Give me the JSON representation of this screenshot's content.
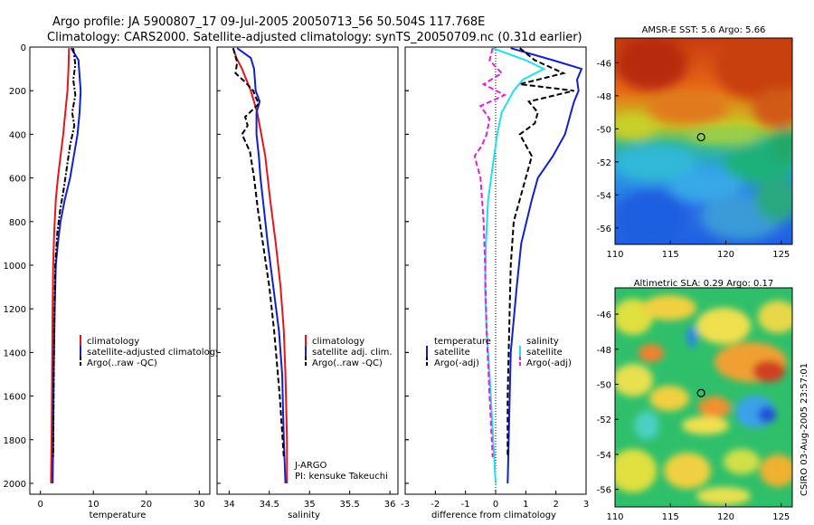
{
  "figure": {
    "title_line1": "Argo profile: JA 5900807_17 09-Jul-2005 20050713_56 50.504S 117.768E",
    "title_line2": "Climatology: CARS2000. Satellite-adjusted climatology: synTS_20050709.nc (0.31d earlier)",
    "timestamp": "CSIRO 03-Aug-2005 23:57:01",
    "colors": {
      "climatology": "#e8141b",
      "satellite": "#1020d0",
      "argo": "#000000",
      "salinity_diff": "#20e0e8",
      "argo_salinity_diff": "#e020e0"
    }
  },
  "chart_data": [
    {
      "id": "temperature",
      "type": "line",
      "xlabel": "temperature",
      "ylabel": "",
      "xlim": [
        -2,
        32
      ],
      "ylim": [
        2050,
        0
      ],
      "xticks": [
        "0",
        "10",
        "20",
        "30"
      ],
      "xtick_values": [
        0,
        10,
        20,
        30
      ],
      "yticks": [
        "0",
        "200",
        "400",
        "600",
        "800",
        "1000",
        "1200",
        "1400",
        "1600",
        "1800",
        "2000"
      ],
      "ytick_values": [
        0,
        200,
        400,
        600,
        800,
        1000,
        1200,
        1400,
        1600,
        1800,
        2000
      ],
      "legend": [
        "climatology",
        "satellite-adjusted climatology",
        "Argo(..raw -QC)"
      ],
      "series": [
        {
          "name": "climatology",
          "style": "solid",
          "color": "#e8141b",
          "x": [
            5.4,
            5.3,
            5.1,
            4.7,
            4.3,
            3.8,
            3.3,
            2.9,
            2.6,
            2.4,
            2.3,
            2.2,
            2.1,
            2.0
          ],
          "y": [
            5,
            100,
            200,
            300,
            400,
            500,
            600,
            700,
            850,
            1000,
            1200,
            1500,
            1800,
            2000
          ]
        },
        {
          "name": "satellite-adjusted climatology",
          "style": "solid",
          "color": "#1020d0",
          "x": [
            5.8,
            7.2,
            7.3,
            7.6,
            7.4,
            7.0,
            6.3,
            5.6,
            4.6,
            3.8,
            3.3,
            2.9,
            2.7,
            2.5,
            2.4,
            2.3
          ],
          "y": [
            5,
            60,
            100,
            200,
            300,
            400,
            500,
            600,
            700,
            800,
            900,
            1000,
            1200,
            1500,
            1800,
            2000
          ]
        },
        {
          "name": "Argo(..raw -QC)",
          "style": "dash-dot",
          "color": "#000000",
          "x": [
            6.2,
            6.6,
            6.2,
            6.6,
            6.0,
            6.4,
            5.6,
            5.0,
            4.4,
            3.7,
            3.2,
            2.8,
            2.6,
            2.5,
            2.4
          ],
          "y": [
            5,
            80,
            150,
            220,
            300,
            360,
            450,
            550,
            650,
            750,
            850,
            1000,
            1300,
            1600,
            1880
          ]
        }
      ]
    },
    {
      "id": "salinity",
      "type": "line",
      "xlabel": "salinity",
      "xlim": [
        33.85,
        36.1
      ],
      "ylim": [
        2050,
        0
      ],
      "xticks": [
        "34",
        "34.5",
        "35",
        "35.5",
        "36"
      ],
      "xtick_values": [
        34,
        34.5,
        35,
        35.5,
        36
      ],
      "legend": [
        "climatology",
        "satellite adj. clim.",
        "Argo(..raw -QC)"
      ],
      "annotations": [
        "J-ARGO",
        "PI: kensuke Takeuchi"
      ],
      "series": [
        {
          "name": "climatology",
          "style": "solid",
          "color": "#e8141b",
          "x": [
            34.05,
            34.09,
            34.16,
            34.27,
            34.35,
            34.4,
            34.45,
            34.51,
            34.58,
            34.64,
            34.68,
            34.7,
            34.72,
            34.72
          ],
          "y": [
            5,
            50,
            100,
            200,
            300,
            400,
            500,
            700,
            900,
            1100,
            1300,
            1500,
            1800,
            2000
          ]
        },
        {
          "name": "satellite adj. clim.",
          "style": "solid",
          "color": "#1020d0",
          "x": [
            34.1,
            34.27,
            34.31,
            34.33,
            34.38,
            34.34,
            34.34,
            34.37,
            34.39,
            34.42,
            34.48,
            34.55,
            34.62,
            34.66,
            34.68,
            34.7
          ],
          "y": [
            5,
            50,
            100,
            200,
            250,
            300,
            400,
            500,
            600,
            700,
            900,
            1100,
            1300,
            1500,
            1800,
            2000
          ]
        },
        {
          "name": "Argo(..raw -QC)",
          "style": "dashed",
          "color": "#000000",
          "x": [
            34.05,
            34.1,
            34.08,
            34.2,
            34.3,
            34.33,
            34.37,
            34.2,
            34.23,
            34.16,
            34.26,
            34.31,
            34.36,
            34.42,
            34.5,
            34.56,
            34.63,
            34.68
          ],
          "y": [
            5,
            70,
            120,
            160,
            200,
            230,
            260,
            320,
            360,
            400,
            480,
            600,
            750,
            900,
            1100,
            1300,
            1600,
            1880
          ]
        }
      ]
    },
    {
      "id": "difference",
      "type": "line",
      "xlabel": "difference from climatology",
      "xlim": [
        -3,
        3
      ],
      "ylim": [
        2050,
        0
      ],
      "xticks": [
        "-3",
        "-2",
        "-1",
        "0",
        "1",
        "2",
        "3"
      ],
      "xtick_values": [
        -3,
        -2,
        -1,
        0,
        1,
        2,
        3
      ],
      "legend_left_header": "temperature",
      "legend_left": [
        "satellite",
        "Argo(-adj)"
      ],
      "legend_right_header": "salinity",
      "legend_right": [
        "satellite",
        "Argo(-adj)"
      ],
      "series": [
        {
          "name": "temperature satellite",
          "style": "solid",
          "color": "#1020d0",
          "x": [
            0.5,
            1.9,
            2.85,
            2.7,
            2.75,
            2.6,
            2.5,
            2.3,
            1.9,
            1.4,
            1.2,
            0.85,
            0.7,
            0.5,
            0.45,
            0.4
          ],
          "y": [
            5,
            60,
            100,
            150,
            200,
            250,
            300,
            400,
            500,
            600,
            700,
            900,
            1100,
            1400,
            1700,
            2000
          ]
        },
        {
          "name": "temperature Argo(-adj)",
          "style": "dashed",
          "color": "#000000",
          "x": [
            0.8,
            1.3,
            2.25,
            0.8,
            2.6,
            1.1,
            1.4,
            1.3,
            0.8,
            1.2,
            1.0,
            0.6,
            0.5,
            0.45,
            0.4,
            0.4
          ],
          "y": [
            5,
            60,
            120,
            170,
            200,
            250,
            300,
            350,
            400,
            500,
            600,
            800,
            1000,
            1300,
            1600,
            1880
          ]
        },
        {
          "name": "salinity satellite",
          "style": "solid",
          "color": "#20e0e8",
          "x": [
            -0.1,
            1.0,
            1.6,
            0.9,
            0.6,
            0.2,
            0.05,
            -0.05,
            -0.15,
            -0.25,
            -0.32,
            -0.35,
            -0.3,
            -0.2,
            -0.08,
            0.0
          ],
          "y": [
            5,
            60,
            100,
            150,
            200,
            300,
            400,
            500,
            600,
            700,
            900,
            1100,
            1300,
            1500,
            1800,
            2000
          ]
        },
        {
          "name": "salinity Argo(-adj)",
          "style": "dashed",
          "color": "#e020e0",
          "x": [
            -0.1,
            -0.2,
            0.2,
            -0.4,
            0.3,
            -0.5,
            -0.2,
            -0.3,
            -0.45,
            -0.7,
            -0.5,
            -0.4,
            -0.35,
            -0.3,
            -0.2,
            -0.1
          ],
          "y": [
            5,
            60,
            120,
            170,
            220,
            270,
            330,
            400,
            450,
            500,
            600,
            800,
            1000,
            1300,
            1600,
            1880
          ]
        }
      ]
    },
    {
      "id": "sst_map",
      "type": "heatmap",
      "title": "AMSR-E SST: 5.6 Argo: 5.66",
      "xlim": [
        110,
        126
      ],
      "ylim": [
        -57,
        -44.5
      ],
      "xticks": [
        "110",
        "115",
        "120",
        "125"
      ],
      "xtick_values": [
        110,
        115,
        120,
        125
      ],
      "yticks": [
        "-46",
        "-48",
        "-50",
        "-52",
        "-54",
        "-56"
      ],
      "ytick_values": [
        -46,
        -48,
        -50,
        -52,
        -54,
        -56
      ],
      "marker": {
        "lon": 117.768,
        "lat": -50.504
      }
    },
    {
      "id": "sla_map",
      "type": "heatmap",
      "title": "Altimetric SLA: 0.29 Argo: 0.17",
      "xlim": [
        110,
        126
      ],
      "ylim": [
        -57,
        -44.5
      ],
      "xticks": [
        "110",
        "115",
        "120",
        "125"
      ],
      "xtick_values": [
        110,
        115,
        120,
        125
      ],
      "yticks": [
        "-46",
        "-48",
        "-50",
        "-52",
        "-54",
        "-56"
      ],
      "ytick_values": [
        -46,
        -48,
        -50,
        -52,
        -54,
        -56
      ],
      "marker": {
        "lon": 117.768,
        "lat": -50.504
      }
    }
  ]
}
